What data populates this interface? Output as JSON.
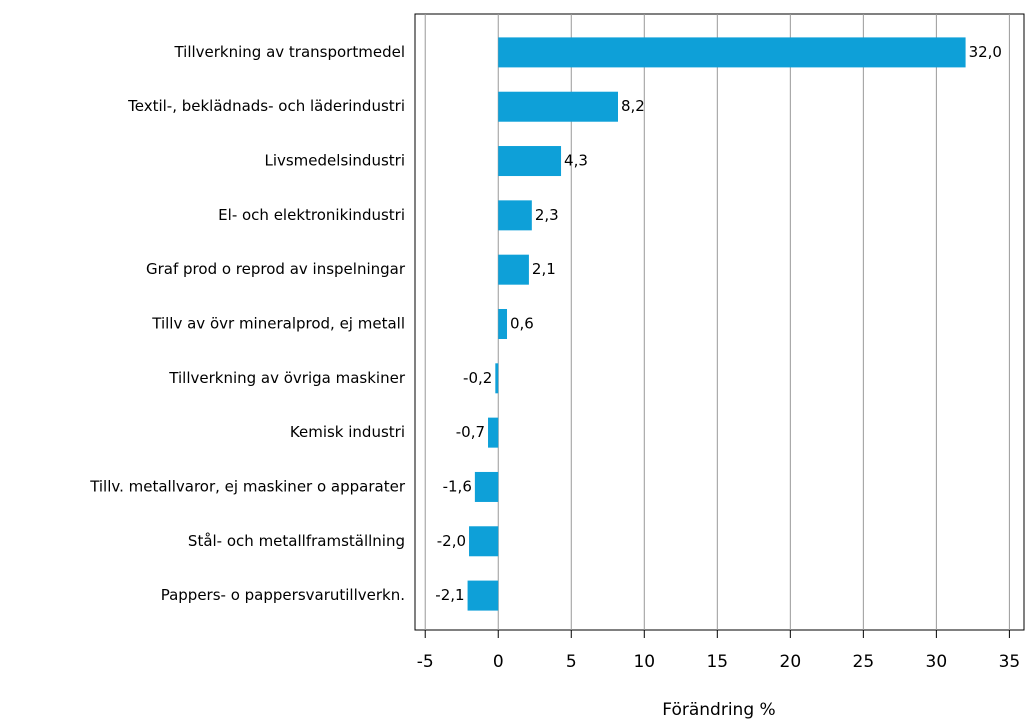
{
  "chart_data": {
    "type": "hbar",
    "xlabel": "Förändring %",
    "categories": [
      "Tillverkning av transportmedel",
      "Textil-, beklädnads- och läderindustri",
      "Livsmedelsindustri",
      "El- och elektronikindustri",
      "Graf prod o reprod av inspelningar",
      "Tillv av övr mineralprod, ej metall",
      "Tillverkning av övriga maskiner",
      "Kemisk industri",
      "Tillv. metallvaror, ej maskiner o apparater",
      "Stål- och metallframställning",
      "Pappers- o pappersvarutillverkn."
    ],
    "values": [
      32.0,
      8.2,
      4.3,
      2.3,
      2.1,
      0.6,
      -0.2,
      -0.7,
      -1.6,
      -2.0,
      -2.1
    ],
    "value_labels": [
      "32,0",
      "8,2",
      "4,3",
      "2,3",
      "2,1",
      "0,6",
      "-0,2",
      "-0,7",
      "-1,6",
      "-2,0",
      "-2,1"
    ],
    "color": "#0ea0d8",
    "xlim": [
      -5.7,
      36
    ],
    "xticks": [
      -5,
      0,
      5,
      10,
      15,
      20,
      25,
      30,
      35
    ],
    "grid": true
  }
}
